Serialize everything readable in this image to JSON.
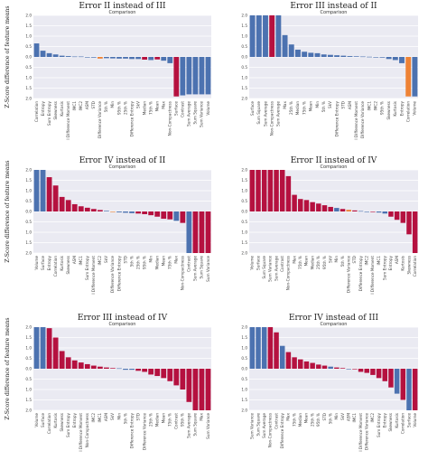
{
  "ylabel": "Z-Score difference of feature means",
  "colors": {
    "red": "#b5113f",
    "blue": "#4c72b0",
    "orange": "#ee8235",
    "bg": "#eaeaf2",
    "grid": "#ffffff"
  },
  "yticks": [
    "2.0",
    "1.5",
    "1.0",
    "0.5",
    "0.0",
    "0.5",
    "1.0",
    "1.5",
    "2.0"
  ],
  "chart_data": [
    {
      "type": "bar",
      "title": "Error II instead of III",
      "subtitle": "Comparison",
      "ylim": [
        -2,
        2
      ],
      "categories": [
        "Correlation",
        "Entropy",
        "Sum Entropy",
        "Skewness",
        "Kurtosis",
        "I Difference Moment",
        "IMC1",
        "IMC2",
        "ASM",
        "STD",
        "Difference Variance",
        "5th %",
        "Min",
        "95th %",
        "25th %",
        "Difference Entropy",
        "SkV",
        "Median",
        "75th %",
        "Mean",
        "Max",
        "Non-Compactness",
        "Surface",
        "Contrast",
        "Sum Average",
        "Sum Square",
        "Sum Variance",
        "Volume"
      ],
      "values": [
        0.65,
        0.3,
        0.18,
        0.12,
        0.06,
        0.04,
        0.02,
        0.02,
        0.0,
        -0.03,
        -0.08,
        -0.06,
        -0.07,
        -0.08,
        -0.08,
        -0.1,
        -0.1,
        -0.13,
        -0.15,
        -0.12,
        -0.18,
        -0.3,
        -1.9,
        -1.85,
        -1.8,
        -1.8,
        -1.8,
        -1.8
      ],
      "colors": [
        "blue",
        "blue",
        "blue",
        "blue",
        "blue",
        "blue",
        "blue",
        "blue",
        "blue",
        "blue",
        "orange",
        "blue",
        "blue",
        "blue",
        "blue",
        "blue",
        "blue",
        "red",
        "blue",
        "red",
        "blue",
        "blue",
        "red",
        "blue",
        "blue",
        "blue",
        "blue",
        "blue"
      ]
    },
    {
      "type": "bar",
      "title": "Error III instead of II",
      "subtitle": "Comparison",
      "ylim": [
        -2,
        2
      ],
      "categories": [
        "Surface",
        "Sum Square",
        "Sum Average",
        "Non-Compactness",
        "Sum Average",
        "Max",
        "25th %",
        "Median",
        "75th %",
        "Mean",
        "Min",
        "5th %",
        "SkV",
        "Difference Entropy",
        "STD",
        "ASM",
        "I Difference Moment",
        "Difference Variance",
        "IMC1",
        "IMC2",
        "95th %",
        "Skewness",
        "Kurtosis",
        "Entropy",
        "Correlation",
        "Volume"
      ],
      "values": [
        2.0,
        2.0,
        2.0,
        2.0,
        2.0,
        1.05,
        0.6,
        0.35,
        0.25,
        0.2,
        0.18,
        0.12,
        0.1,
        0.08,
        0.06,
        0.04,
        0.03,
        0.02,
        0.01,
        0.0,
        -0.03,
        -0.1,
        -0.15,
        -0.3,
        -1.9,
        -1.9
      ],
      "colors": [
        "blue",
        "blue",
        "blue",
        "red",
        "blue",
        "blue",
        "blue",
        "blue",
        "blue",
        "blue",
        "blue",
        "blue",
        "blue",
        "blue",
        "blue",
        "blue",
        "blue",
        "blue",
        "blue",
        "blue",
        "blue",
        "blue",
        "blue",
        "blue",
        "orange",
        "blue"
      ]
    },
    {
      "type": "bar",
      "title": "Error IV instead of II",
      "subtitle": "Comparison",
      "ylim": [
        -2,
        2
      ],
      "categories": [
        "Volume",
        "Surface",
        "Entropy",
        "Correlation",
        "Kurtosis",
        "Skewness",
        "ASM",
        "IMC1",
        "Sum Entropy",
        "I Difference Moment",
        "IMC2",
        "SkV",
        "Difference Variance",
        "Difference Entropy",
        "STD",
        "5th %",
        "25th %",
        "95th %",
        "Min",
        "Median",
        "Mean",
        "75th %",
        "Max",
        "Non-Compactness",
        "Contrast",
        "Sum Average",
        "Sum Square",
        "Sum Variance"
      ],
      "values": [
        2.0,
        2.0,
        1.65,
        1.25,
        0.7,
        0.55,
        0.35,
        0.25,
        0.18,
        0.12,
        0.07,
        0.03,
        -0.02,
        -0.04,
        -0.06,
        -0.08,
        -0.1,
        -0.13,
        -0.18,
        -0.25,
        -0.35,
        -0.38,
        -0.45,
        -0.55,
        -2.0,
        -2.0,
        -2.0,
        -2.0
      ],
      "colors": [
        "blue",
        "blue",
        "red",
        "red",
        "red",
        "red",
        "red",
        "red",
        "red",
        "red",
        "red",
        "blue",
        "orange",
        "blue",
        "blue",
        "blue",
        "red",
        "red",
        "red",
        "red",
        "red",
        "red",
        "blue",
        "red",
        "blue",
        "red",
        "red",
        "red"
      ]
    },
    {
      "type": "bar",
      "title": "Error II instead of IV",
      "subtitle": "Comparison",
      "ylim": [
        -2,
        2
      ],
      "categories": [
        "Volume",
        "Surface",
        "Sum Square",
        "Sum Variance",
        "Sum Average",
        "Contrast",
        "Non-Compactness",
        "Max",
        "75th %",
        "Mean",
        "Median",
        "25th %",
        "95th %",
        "SkV",
        "Min",
        "5th %",
        "Difference Variance",
        "STD",
        "Difference Entropy",
        "IMC2",
        "I Difference Moment",
        "IMC1",
        "Sum Entropy",
        "Entropy",
        "ASM",
        "Kurtosis",
        "Skewness",
        "Correlation"
      ],
      "values": [
        2.0,
        2.0,
        2.0,
        2.0,
        2.0,
        2.0,
        1.7,
        0.8,
        0.6,
        0.55,
        0.45,
        0.38,
        0.3,
        0.22,
        0.17,
        0.12,
        0.08,
        0.05,
        0.02,
        0.0,
        -0.02,
        -0.05,
        -0.1,
        -0.25,
        -0.4,
        -0.55,
        -1.1,
        -2.0
      ],
      "colors": [
        "red",
        "red",
        "red",
        "red",
        "red",
        "red",
        "red",
        "red",
        "red",
        "red",
        "red",
        "red",
        "red",
        "red",
        "blue",
        "red",
        "orange",
        "red",
        "blue",
        "blue",
        "red",
        "blue",
        "blue",
        "red",
        "red",
        "red",
        "red",
        "red"
      ]
    },
    {
      "type": "bar",
      "title": "Error III instead of IV",
      "subtitle": "Comparison",
      "ylim": [
        -2,
        2
      ],
      "categories": [
        "Volume",
        "Surface",
        "Correlation",
        "Kurtosis",
        "Skewness",
        "Sum Entropy",
        "Entropy",
        "I Difference Moment",
        "Non-Compactness",
        "IMC2",
        "IMC1",
        "ASM",
        "SkV",
        "Min",
        "5th %",
        "Difference Entropy",
        "STD",
        "Difference Variance",
        "25th %",
        "Median",
        "Mean",
        "75th %",
        "Contrast",
        "95th %",
        "Sum Average",
        "Sum Square",
        "Max",
        "Sum Variance"
      ],
      "values": [
        2.0,
        2.0,
        1.95,
        1.5,
        0.85,
        0.55,
        0.4,
        0.3,
        0.22,
        0.15,
        0.1,
        0.06,
        0.03,
        0.02,
        -0.05,
        -0.05,
        -0.1,
        -0.15,
        -0.28,
        -0.35,
        -0.45,
        -0.6,
        -0.8,
        -1.0,
        -1.6,
        -2.0,
        -2.0,
        -2.0
      ],
      "colors": [
        "blue",
        "blue",
        "red",
        "red",
        "red",
        "red",
        "red",
        "red",
        "red",
        "red",
        "red",
        "red",
        "red",
        "blue",
        "blue",
        "blue",
        "red",
        "red",
        "red",
        "red",
        "red",
        "red",
        "red",
        "red",
        "red",
        "red",
        "red",
        "red"
      ]
    },
    {
      "type": "bar",
      "title": "Error IV instead of III",
      "subtitle": "Comparison",
      "ylim": [
        -2,
        2
      ],
      "categories": [
        "Sum Variance",
        "Sum Square",
        "Sum Average",
        "Non-Compactness",
        "Contrast",
        "Difference Entropy",
        "Max",
        "75th %",
        "Median",
        "Mean",
        "25th %",
        "95th %",
        "STD",
        "5th %",
        "Min",
        "SkV",
        "ASM",
        "IMC1",
        "I Difference Moment",
        "Difference Variance",
        "IMC2",
        "Sum Entropy",
        "Entropy",
        "Skewness",
        "Kurtosis",
        "Correlation",
        "Surface",
        "Volume"
      ],
      "values": [
        2.0,
        2.0,
        2.0,
        2.0,
        1.75,
        1.1,
        0.8,
        0.55,
        0.45,
        0.35,
        0.28,
        0.2,
        0.15,
        0.1,
        0.06,
        0.03,
        0.0,
        -0.02,
        -0.15,
        -0.2,
        -0.3,
        -0.45,
        -0.6,
        -0.9,
        -1.2,
        -1.5,
        -2.0,
        -2.0
      ],
      "colors": [
        "blue",
        "blue",
        "blue",
        "red",
        "red",
        "blue",
        "red",
        "red",
        "red",
        "red",
        "red",
        "red",
        "red",
        "blue",
        "red",
        "red",
        "blue",
        "red",
        "red",
        "red",
        "red",
        "red",
        "red",
        "red",
        "blue",
        "red",
        "blue",
        "red"
      ]
    }
  ]
}
